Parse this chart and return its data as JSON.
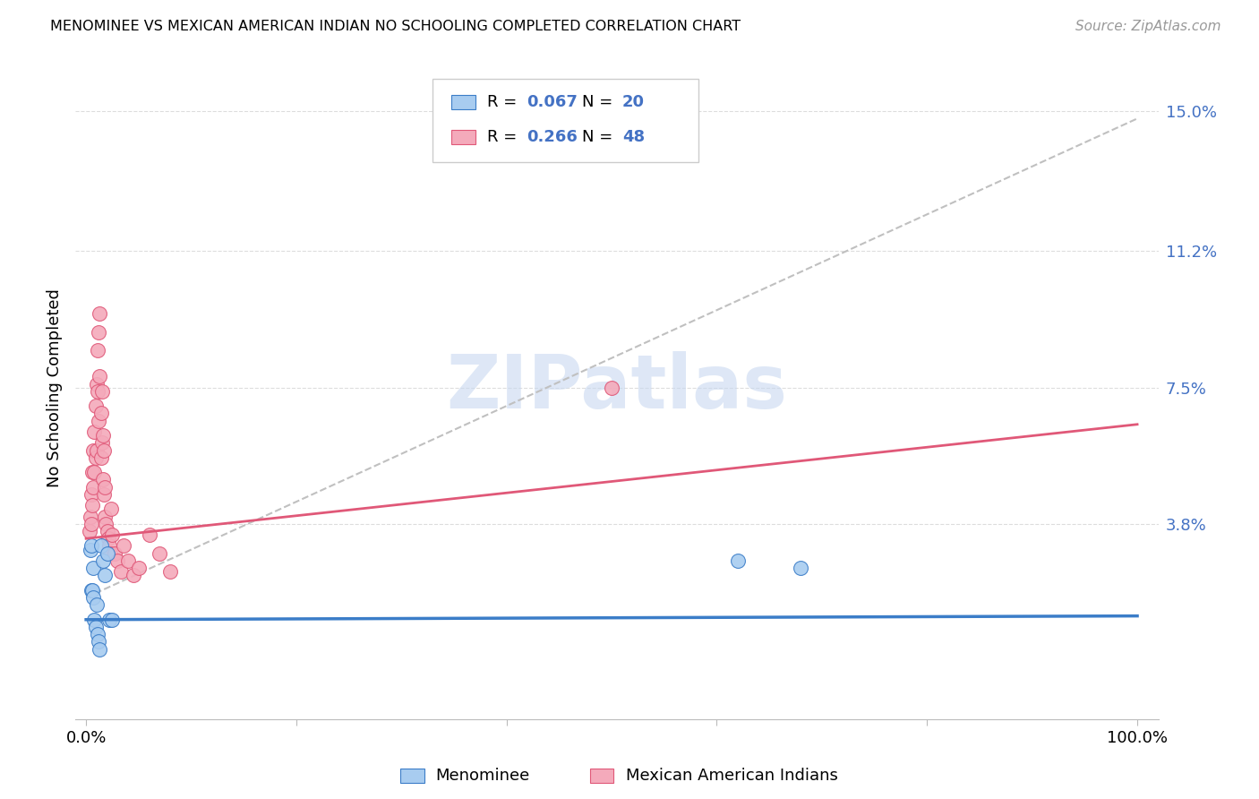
{
  "title": "MENOMINEE VS MEXICAN AMERICAN INDIAN NO SCHOOLING COMPLETED CORRELATION CHART",
  "source": "Source: ZipAtlas.com",
  "ylabel": "No Schooling Completed",
  "y_tick_vals": [
    0.0,
    0.038,
    0.075,
    0.112,
    0.15
  ],
  "y_tick_labels": [
    "",
    "3.8%",
    "7.5%",
    "11.2%",
    "15.0%"
  ],
  "menominee_color": "#A8CCF0",
  "mexican_color": "#F4AABB",
  "blue_line_color": "#3B7DC8",
  "pink_line_color": "#E05878",
  "gray_dash_color": "#C0C0C0",
  "watermark_text": "ZIPatlas",
  "watermark_color": "#C8D8F0",
  "legend_r1": "0.067",
  "legend_n1": "20",
  "legend_r2": "0.266",
  "legend_n2": "48",
  "blue_line_y0": 0.012,
  "blue_line_y1": 0.013,
  "pink_line_y0": 0.034,
  "pink_line_y1": 0.065,
  "gray_line_y0": 0.018,
  "gray_line_y1": 0.148,
  "menominee_x": [
    0.004,
    0.005,
    0.005,
    0.006,
    0.007,
    0.007,
    0.008,
    0.009,
    0.01,
    0.011,
    0.012,
    0.013,
    0.014,
    0.016,
    0.018,
    0.02,
    0.022,
    0.025,
    0.62,
    0.68
  ],
  "menominee_y": [
    0.031,
    0.02,
    0.032,
    0.02,
    0.026,
    0.018,
    0.012,
    0.01,
    0.016,
    0.008,
    0.006,
    0.004,
    0.032,
    0.028,
    0.024,
    0.03,
    0.012,
    0.012,
    0.028,
    0.026
  ],
  "mexican_x": [
    0.003,
    0.004,
    0.005,
    0.005,
    0.006,
    0.006,
    0.007,
    0.007,
    0.008,
    0.008,
    0.009,
    0.009,
    0.01,
    0.01,
    0.011,
    0.011,
    0.012,
    0.012,
    0.013,
    0.013,
    0.014,
    0.014,
    0.015,
    0.015,
    0.016,
    0.016,
    0.017,
    0.017,
    0.018,
    0.018,
    0.019,
    0.02,
    0.021,
    0.022,
    0.023,
    0.024,
    0.025,
    0.027,
    0.03,
    0.033,
    0.036,
    0.04,
    0.045,
    0.05,
    0.06,
    0.07,
    0.08,
    0.5
  ],
  "mexican_y": [
    0.036,
    0.04,
    0.046,
    0.038,
    0.052,
    0.043,
    0.058,
    0.048,
    0.063,
    0.052,
    0.07,
    0.056,
    0.076,
    0.058,
    0.085,
    0.074,
    0.09,
    0.066,
    0.095,
    0.078,
    0.068,
    0.056,
    0.074,
    0.06,
    0.062,
    0.05,
    0.058,
    0.046,
    0.048,
    0.04,
    0.038,
    0.036,
    0.034,
    0.032,
    0.03,
    0.042,
    0.035,
    0.03,
    0.028,
    0.025,
    0.032,
    0.028,
    0.024,
    0.026,
    0.035,
    0.03,
    0.025,
    0.075
  ],
  "xlim": [
    -0.01,
    1.02
  ],
  "ylim": [
    -0.015,
    0.165
  ]
}
